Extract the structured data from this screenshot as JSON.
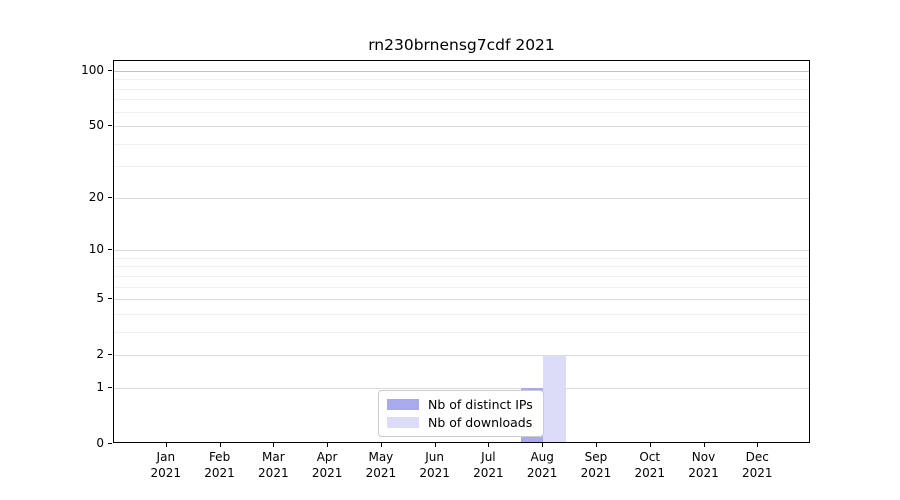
{
  "chart_data": {
    "type": "bar",
    "title": "rn230brnensg7cdf 2021",
    "categories": [
      "Jan",
      "Feb",
      "Mar",
      "Apr",
      "May",
      "Jun",
      "Jul",
      "Aug",
      "Sep",
      "Oct",
      "Nov",
      "Dec"
    ],
    "category_year": "2021",
    "series": [
      {
        "name": "Nb of distinct IPs",
        "color": "#a9a9ee",
        "values": [
          0,
          0,
          0,
          0,
          0,
          0,
          0,
          1,
          0,
          0,
          0,
          0
        ]
      },
      {
        "name": "Nb of downloads",
        "color": "#dcdcf8",
        "values": [
          0,
          0,
          0,
          0,
          0,
          0,
          0,
          2,
          0,
          0,
          0,
          0
        ]
      }
    ],
    "yscale": "log1p",
    "ylim": [
      0,
      113
    ],
    "y_major_ticks": [
      0,
      1,
      2,
      5,
      10,
      20,
      50,
      100
    ],
    "y_minor_gridlines": [
      3,
      4,
      6,
      7,
      8,
      9,
      30,
      40,
      60,
      70,
      80,
      90
    ],
    "grid": "on",
    "legend_position": "lower-center",
    "colors": {
      "grid_major": "#d9d9d9",
      "grid_minor": "#f0f0f0",
      "grid_top": "#c3c3c3",
      "axis": "#000000",
      "text": "#000000"
    }
  }
}
